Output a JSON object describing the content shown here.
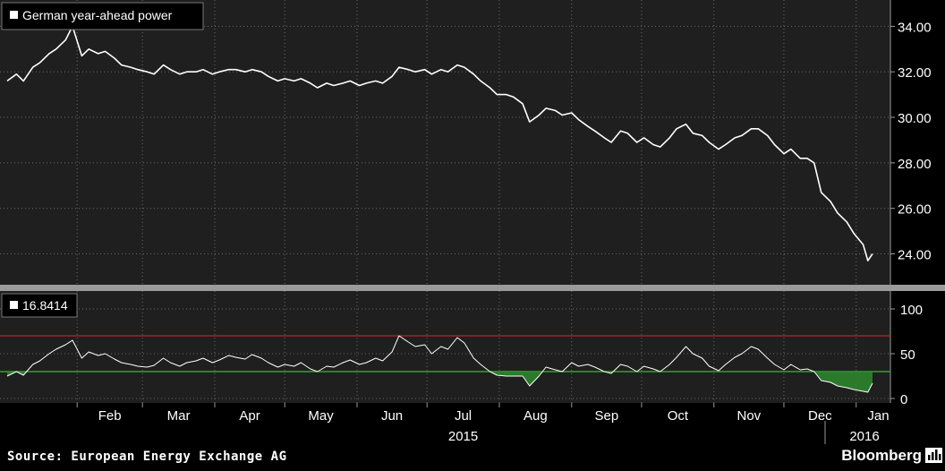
{
  "source": "Source: European Energy Exchange AG",
  "brand": "Bloomberg",
  "colors": {
    "background": "#1f1f1f",
    "line": "#ffffff",
    "grid": "#6a6a6a",
    "upper_band": "#c02020",
    "lower_band": "#3cb83c",
    "fill": "#2e8b2e"
  },
  "chart_data": [
    {
      "type": "line",
      "title": "",
      "legend": [
        "German year-ahead power"
      ],
      "xlabel": "2015",
      "ylabel": "",
      "x_ticks": [
        "Feb",
        "Mar",
        "Apr",
        "May",
        "Jun",
        "Jul",
        "Aug",
        "Sep",
        "Oct",
        "Nov",
        "Dec",
        "Jan"
      ],
      "x_tick_years": {
        "Feb": "2015",
        "Jan": "2016"
      },
      "y_ticks": [
        "24.00",
        "26.00",
        "28.00",
        "30.00",
        "32.00",
        "34.00"
      ],
      "ylim": [
        22.8,
        35.0
      ],
      "grid": true,
      "series": [
        {
          "name": "German year-ahead power",
          "points": [
            [
              "2015-01-02",
              31.6
            ],
            [
              "2015-01-06",
              31.9
            ],
            [
              "2015-01-09",
              31.6
            ],
            [
              "2015-01-13",
              32.2
            ],
            [
              "2015-01-16",
              32.4
            ],
            [
              "2015-01-20",
              32.8
            ],
            [
              "2015-01-23",
              33.0
            ],
            [
              "2015-01-27",
              33.4
            ],
            [
              "2015-01-30",
              34.0
            ],
            [
              "2015-02-03",
              32.7
            ],
            [
              "2015-02-06",
              33.0
            ],
            [
              "2015-02-10",
              32.8
            ],
            [
              "2015-02-13",
              32.9
            ],
            [
              "2015-02-17",
              32.6
            ],
            [
              "2015-02-20",
              32.3
            ],
            [
              "2015-02-24",
              32.2
            ],
            [
              "2015-02-27",
              32.1
            ],
            [
              "2015-03-03",
              32.0
            ],
            [
              "2015-03-06",
              31.9
            ],
            [
              "2015-03-10",
              32.3
            ],
            [
              "2015-03-13",
              32.1
            ],
            [
              "2015-03-17",
              31.9
            ],
            [
              "2015-03-20",
              32.0
            ],
            [
              "2015-03-24",
              32.0
            ],
            [
              "2015-03-27",
              32.1
            ],
            [
              "2015-03-31",
              31.9
            ],
            [
              "2015-04-03",
              32.0
            ],
            [
              "2015-04-07",
              32.1
            ],
            [
              "2015-04-10",
              32.1
            ],
            [
              "2015-04-14",
              32.0
            ],
            [
              "2015-04-17",
              32.1
            ],
            [
              "2015-04-21",
              32.0
            ],
            [
              "2015-04-24",
              31.8
            ],
            [
              "2015-04-28",
              31.6
            ],
            [
              "2015-05-01",
              31.7
            ],
            [
              "2015-05-05",
              31.6
            ],
            [
              "2015-05-08",
              31.7
            ],
            [
              "2015-05-12",
              31.5
            ],
            [
              "2015-05-15",
              31.3
            ],
            [
              "2015-05-19",
              31.5
            ],
            [
              "2015-05-22",
              31.4
            ],
            [
              "2015-05-26",
              31.5
            ],
            [
              "2015-05-29",
              31.6
            ],
            [
              "2015-06-02",
              31.4
            ],
            [
              "2015-06-05",
              31.5
            ],
            [
              "2015-06-09",
              31.6
            ],
            [
              "2015-06-12",
              31.5
            ],
            [
              "2015-06-16",
              31.8
            ],
            [
              "2015-06-19",
              32.2
            ],
            [
              "2015-06-23",
              32.1
            ],
            [
              "2015-06-26",
              32.0
            ],
            [
              "2015-06-30",
              32.1
            ],
            [
              "2015-07-03",
              31.9
            ],
            [
              "2015-07-07",
              32.1
            ],
            [
              "2015-07-10",
              32.0
            ],
            [
              "2015-07-14",
              32.3
            ],
            [
              "2015-07-17",
              32.2
            ],
            [
              "2015-07-21",
              31.9
            ],
            [
              "2015-07-24",
              31.6
            ],
            [
              "2015-07-28",
              31.3
            ],
            [
              "2015-07-31",
              31.0
            ],
            [
              "2015-08-04",
              31.0
            ],
            [
              "2015-08-07",
              30.9
            ],
            [
              "2015-08-11",
              30.6
            ],
            [
              "2015-08-14",
              29.8
            ],
            [
              "2015-08-18",
              30.1
            ],
            [
              "2015-08-21",
              30.4
            ],
            [
              "2015-08-25",
              30.3
            ],
            [
              "2015-08-28",
              30.1
            ],
            [
              "2015-09-01",
              30.2
            ],
            [
              "2015-09-04",
              29.9
            ],
            [
              "2015-09-08",
              29.6
            ],
            [
              "2015-09-11",
              29.4
            ],
            [
              "2015-09-15",
              29.1
            ],
            [
              "2015-09-18",
              28.9
            ],
            [
              "2015-09-22",
              29.4
            ],
            [
              "2015-09-25",
              29.3
            ],
            [
              "2015-09-29",
              28.9
            ],
            [
              "2015-10-02",
              29.1
            ],
            [
              "2015-10-06",
              28.8
            ],
            [
              "2015-10-09",
              28.7
            ],
            [
              "2015-10-13",
              29.1
            ],
            [
              "2015-10-16",
              29.5
            ],
            [
              "2015-10-20",
              29.7
            ],
            [
              "2015-10-23",
              29.3
            ],
            [
              "2015-10-27",
              29.2
            ],
            [
              "2015-10-30",
              28.9
            ],
            [
              "2015-11-03",
              28.6
            ],
            [
              "2015-11-06",
              28.8
            ],
            [
              "2015-11-10",
              29.1
            ],
            [
              "2015-11-13",
              29.2
            ],
            [
              "2015-11-17",
              29.5
            ],
            [
              "2015-11-20",
              29.5
            ],
            [
              "2015-11-24",
              29.2
            ],
            [
              "2015-11-27",
              28.8
            ],
            [
              "2015-12-01",
              28.4
            ],
            [
              "2015-12-04",
              28.6
            ],
            [
              "2015-12-08",
              28.2
            ],
            [
              "2015-12-11",
              28.2
            ],
            [
              "2015-12-14",
              28.0
            ],
            [
              "2015-12-17",
              26.7
            ],
            [
              "2015-12-21",
              26.3
            ],
            [
              "2015-12-24",
              25.8
            ],
            [
              "2015-12-28",
              25.4
            ],
            [
              "2015-12-31",
              24.9
            ],
            [
              "2016-01-04",
              24.4
            ],
            [
              "2016-01-06",
              23.7
            ],
            [
              "2016-01-08",
              24.0
            ]
          ]
        }
      ]
    },
    {
      "type": "line",
      "title": "",
      "legend": [
        "16.8414"
      ],
      "y_ticks": [
        "0",
        "50",
        "100"
      ],
      "ylim": [
        -5,
        115
      ],
      "reference_lines": [
        70,
        30
      ],
      "shading": "area between series and 30 shaded green where series < 30",
      "grid": true,
      "series": [
        {
          "name": "16.8414",
          "points": [
            [
              "2015-01-02",
              25
            ],
            [
              "2015-01-06",
              30
            ],
            [
              "2015-01-09",
              26
            ],
            [
              "2015-01-13",
              38
            ],
            [
              "2015-01-16",
              42
            ],
            [
              "2015-01-20",
              50
            ],
            [
              "2015-01-23",
              55
            ],
            [
              "2015-01-27",
              60
            ],
            [
              "2015-01-30",
              65
            ],
            [
              "2015-02-03",
              45
            ],
            [
              "2015-02-06",
              52
            ],
            [
              "2015-02-10",
              48
            ],
            [
              "2015-02-13",
              50
            ],
            [
              "2015-02-17",
              44
            ],
            [
              "2015-02-20",
              40
            ],
            [
              "2015-02-24",
              38
            ],
            [
              "2015-02-27",
              36
            ],
            [
              "2015-03-03",
              35
            ],
            [
              "2015-03-06",
              37
            ],
            [
              "2015-03-10",
              45
            ],
            [
              "2015-03-13",
              40
            ],
            [
              "2015-03-17",
              36
            ],
            [
              "2015-03-20",
              40
            ],
            [
              "2015-03-24",
              42
            ],
            [
              "2015-03-27",
              45
            ],
            [
              "2015-03-31",
              40
            ],
            [
              "2015-04-03",
              43
            ],
            [
              "2015-04-07",
              48
            ],
            [
              "2015-04-10",
              46
            ],
            [
              "2015-04-14",
              44
            ],
            [
              "2015-04-17",
              49
            ],
            [
              "2015-04-21",
              45
            ],
            [
              "2015-04-24",
              40
            ],
            [
              "2015-04-28",
              35
            ],
            [
              "2015-05-01",
              38
            ],
            [
              "2015-05-05",
              36
            ],
            [
              "2015-05-08",
              40
            ],
            [
              "2015-05-12",
              33
            ],
            [
              "2015-05-15",
              30
            ],
            [
              "2015-05-19",
              36
            ],
            [
              "2015-05-22",
              35
            ],
            [
              "2015-05-26",
              40
            ],
            [
              "2015-05-29",
              43
            ],
            [
              "2015-06-02",
              38
            ],
            [
              "2015-06-05",
              40
            ],
            [
              "2015-06-09",
              45
            ],
            [
              "2015-06-12",
              42
            ],
            [
              "2015-06-16",
              52
            ],
            [
              "2015-06-19",
              70
            ],
            [
              "2015-06-23",
              63
            ],
            [
              "2015-06-26",
              58
            ],
            [
              "2015-06-30",
              60
            ],
            [
              "2015-07-03",
              50
            ],
            [
              "2015-07-07",
              58
            ],
            [
              "2015-07-10",
              55
            ],
            [
              "2015-07-14",
              68
            ],
            [
              "2015-07-17",
              62
            ],
            [
              "2015-07-21",
              45
            ],
            [
              "2015-07-24",
              38
            ],
            [
              "2015-07-28",
              30
            ],
            [
              "2015-07-31",
              26
            ],
            [
              "2015-08-04",
              25
            ],
            [
              "2015-08-07",
              25
            ],
            [
              "2015-08-11",
              25
            ],
            [
              "2015-08-14",
              14
            ],
            [
              "2015-08-18",
              25
            ],
            [
              "2015-08-21",
              35
            ],
            [
              "2015-08-25",
              32
            ],
            [
              "2015-08-28",
              30
            ],
            [
              "2015-09-01",
              40
            ],
            [
              "2015-09-04",
              36
            ],
            [
              "2015-09-08",
              38
            ],
            [
              "2015-09-11",
              35
            ],
            [
              "2015-09-15",
              30
            ],
            [
              "2015-09-18",
              28
            ],
            [
              "2015-09-22",
              38
            ],
            [
              "2015-09-25",
              36
            ],
            [
              "2015-09-29",
              30
            ],
            [
              "2015-10-02",
              36
            ],
            [
              "2015-10-06",
              33
            ],
            [
              "2015-10-09",
              30
            ],
            [
              "2015-10-13",
              38
            ],
            [
              "2015-10-16",
              46
            ],
            [
              "2015-10-20",
              58
            ],
            [
              "2015-10-23",
              50
            ],
            [
              "2015-10-27",
              45
            ],
            [
              "2015-10-30",
              36
            ],
            [
              "2015-11-03",
              31
            ],
            [
              "2015-11-06",
              38
            ],
            [
              "2015-11-10",
              46
            ],
            [
              "2015-11-13",
              50
            ],
            [
              "2015-11-17",
              58
            ],
            [
              "2015-11-20",
              55
            ],
            [
              "2015-11-24",
              45
            ],
            [
              "2015-11-27",
              38
            ],
            [
              "2015-12-01",
              32
            ],
            [
              "2015-12-04",
              38
            ],
            [
              "2015-12-08",
              32
            ],
            [
              "2015-12-11",
              33
            ],
            [
              "2015-12-14",
              30
            ],
            [
              "2015-12-17",
              20
            ],
            [
              "2015-12-21",
              18
            ],
            [
              "2015-12-24",
              14
            ],
            [
              "2015-12-28",
              12
            ],
            [
              "2015-12-31",
              10
            ],
            [
              "2016-01-04",
              8
            ],
            [
              "2016-01-06",
              7
            ],
            [
              "2016-01-08",
              17
            ]
          ]
        }
      ]
    }
  ]
}
